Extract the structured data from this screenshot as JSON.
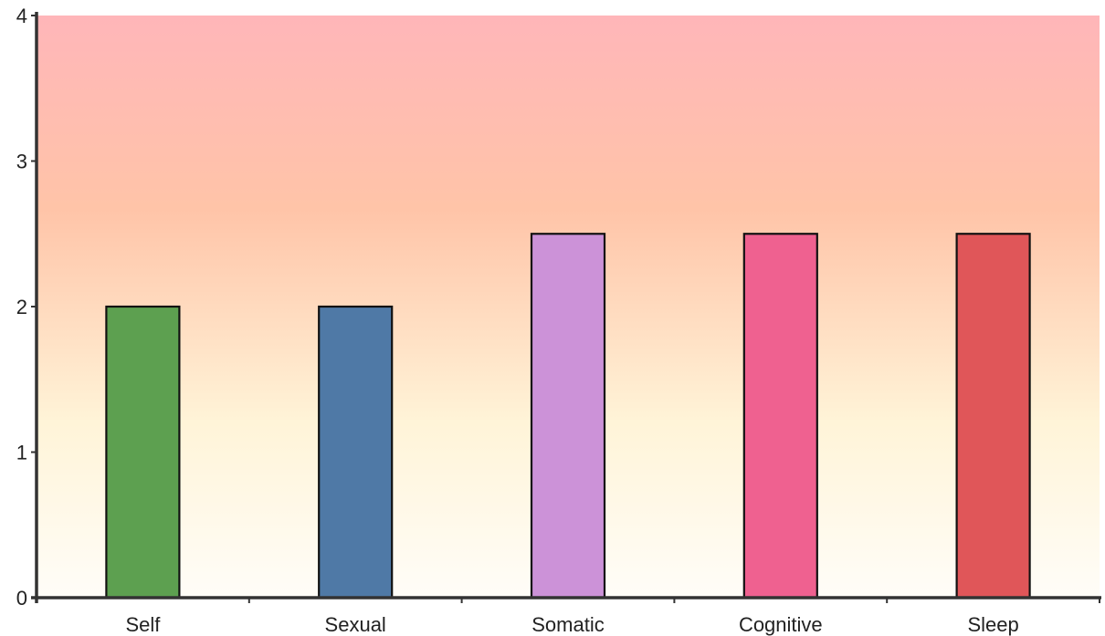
{
  "chart_data": {
    "type": "bar",
    "categories": [
      "Self",
      "Sexual",
      "Somatic",
      "Cognitive",
      "Sleep"
    ],
    "values": [
      2,
      2,
      2.5,
      2.5,
      2.5
    ],
    "bar_colors": [
      "#5da050",
      "#4f79a6",
      "#cc92d8",
      "#ef6190",
      "#e05659"
    ],
    "title": "",
    "xlabel": "",
    "ylabel": "",
    "ylim": [
      0,
      4
    ],
    "yticks": [
      "0",
      "1",
      "2",
      "3",
      "4"
    ],
    "grid": false,
    "background_gradient": [
      {
        "value": 4,
        "color": "#ffb6b9"
      },
      {
        "value": 2.67,
        "color": "#ffc4a8"
      },
      {
        "value": 1.2,
        "color": "#fff4d8"
      },
      {
        "value": 0,
        "color": "#fffdf8"
      }
    ],
    "axis_color": "#333333",
    "bar_stroke": "#111111"
  }
}
